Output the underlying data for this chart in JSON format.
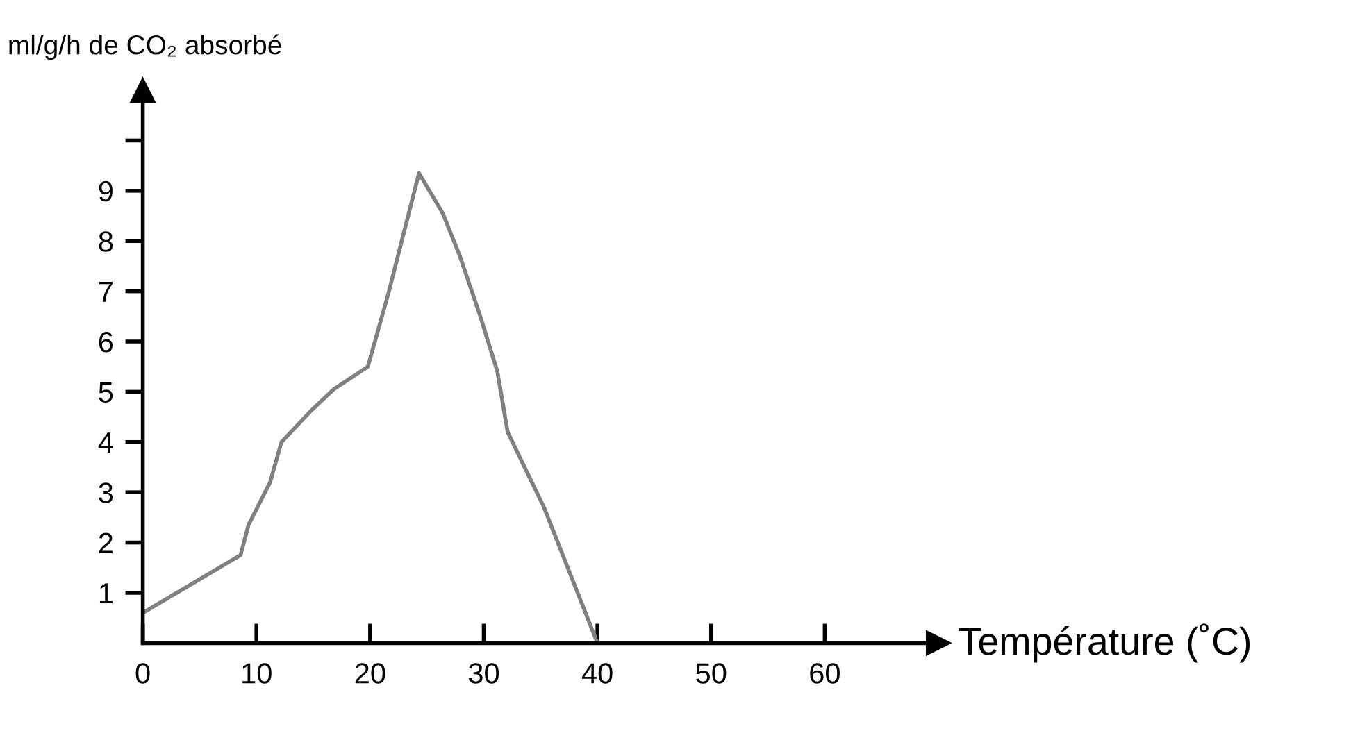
{
  "chart_data": {
    "type": "line",
    "xlabel": "Température (˚C)",
    "ylabel": "ml/g/h de CO₂ absorbé",
    "x": [
      0,
      8.6,
      9.3,
      11.2,
      12.2,
      14.7,
      16.8,
      19.8,
      21.6,
      24.3,
      26.4,
      27.9,
      29.7,
      31.2,
      32.1,
      35.3,
      40
    ],
    "series": [
      {
        "color": "#808080",
        "values": [
          0.6,
          1.75,
          2.35,
          3.2,
          4.0,
          4.6,
          5.05,
          5.5,
          6.95,
          9.35,
          8.55,
          7.7,
          6.5,
          5.4,
          4.2,
          2.7,
          0
        ]
      }
    ],
    "xlim": [
      0,
      70
    ],
    "ylim": [
      0,
      11
    ],
    "xticks": [
      0,
      10,
      20,
      30,
      40,
      50,
      60
    ],
    "yticks": [
      1,
      2,
      3,
      4,
      5,
      6,
      7,
      8,
      9,
      {
        "value": 10,
        "label": null
      }
    ],
    "grid": false,
    "legend": false,
    "marker": "none",
    "line_style": "solid"
  }
}
